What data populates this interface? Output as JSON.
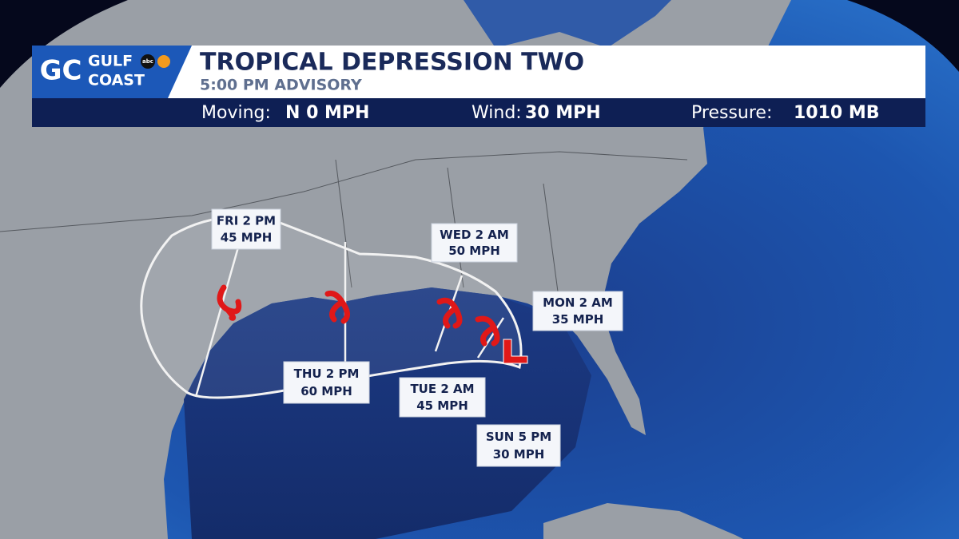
{
  "logo": {
    "mark": "GC",
    "line1": "GULF",
    "line2": "COAST",
    "network": "abc"
  },
  "header": {
    "title": "TROPICAL DEPRESSION TWO",
    "subtitle": "5:00 PM ADVISORY"
  },
  "stats": [
    {
      "label": "Moving:",
      "value": "N 0 MPH"
    },
    {
      "label": "Wind:",
      "value": "30 MPH"
    },
    {
      "label": "Pressure:",
      "value": "1010 MB"
    }
  ],
  "forecast_points": [
    {
      "time": "FRI 2 PM",
      "wind": "45 MPH"
    },
    {
      "time": "WED 2 AM",
      "wind": "50 MPH"
    },
    {
      "time": "MON 2 AM",
      "wind": "35 MPH"
    },
    {
      "time": "THU 2 PM",
      "wind": "60 MPH"
    },
    {
      "time": "TUE 2 AM",
      "wind": "45 MPH"
    },
    {
      "time": "SUN 5 PM",
      "wind": "30 MPH"
    }
  ]
}
